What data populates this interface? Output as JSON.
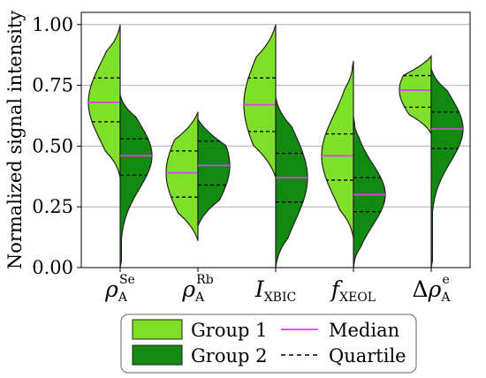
{
  "chart_data": {
    "type": "violin-split",
    "ylabel": "Normalized signal intensity",
    "ylim": [
      0,
      1.05
    ],
    "yticks": [
      0.0,
      0.25,
      0.5,
      0.75,
      1.0
    ],
    "ytick_labels": [
      "0.00",
      "0.25",
      "0.50",
      "0.75",
      "1.00"
    ],
    "grid": "horizontal",
    "legend_position": "bottom",
    "categories": [
      {
        "id": "rho_se",
        "symbol": "ρ",
        "sub": "A",
        "sup": "Se",
        "prefix": ""
      },
      {
        "id": "rho_rb",
        "symbol": "ρ",
        "sub": "A",
        "sup": "Rb",
        "prefix": ""
      },
      {
        "id": "i_xbic",
        "symbol": "I",
        "sub": "XBIC",
        "sup": "",
        "prefix": ""
      },
      {
        "id": "f_xeol",
        "symbol": "f",
        "sub": "XEOL",
        "sup": "",
        "prefix": ""
      },
      {
        "id": "delta_rho",
        "symbol": "ρ",
        "sub": "A",
        "sup": "e",
        "prefix": "Δ"
      }
    ],
    "series": [
      {
        "name": "Group 1",
        "color": "#7fe02a",
        "side": "left",
        "medians": [
          0.68,
          0.39,
          0.67,
          0.46,
          0.73
        ],
        "q1": [
          0.6,
          0.29,
          0.56,
          0.36,
          0.66
        ],
        "q3": [
          0.78,
          0.48,
          0.78,
          0.55,
          0.79
        ],
        "min": [
          0.37,
          0.11,
          0.37,
          0.12,
          0.55
        ],
        "max": [
          1.0,
          0.64,
          1.0,
          0.85,
          0.87
        ]
      },
      {
        "name": "Group 2",
        "color": "#128a12",
        "side": "right",
        "medians": [
          0.46,
          0.42,
          0.37,
          0.3,
          0.57
        ],
        "q1": [
          0.38,
          0.34,
          0.27,
          0.23,
          0.49
        ],
        "q3": [
          0.53,
          0.52,
          0.47,
          0.37,
          0.64
        ],
        "min": [
          0.0,
          0.17,
          0.0,
          0.0,
          0.0
        ],
        "max": [
          0.71,
          0.61,
          0.7,
          0.62,
          0.82
        ]
      }
    ],
    "legend": {
      "items": [
        {
          "label": "Group 1",
          "kind": "patch",
          "color": "#7fe02a"
        },
        {
          "label": "Group 2",
          "kind": "patch",
          "color": "#128a12"
        },
        {
          "label": "Median",
          "kind": "line",
          "color": "#e040e0"
        },
        {
          "label": "Quartile",
          "kind": "dashed",
          "color": "#000000"
        }
      ]
    },
    "median_color": "#e040e0"
  }
}
